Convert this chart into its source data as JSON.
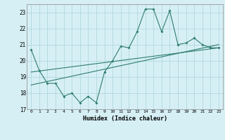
{
  "x_values": [
    0,
    1,
    2,
    3,
    4,
    5,
    6,
    7,
    8,
    9,
    10,
    11,
    12,
    13,
    14,
    15,
    16,
    17,
    18,
    19,
    20,
    21,
    22,
    23
  ],
  "y_main": [
    20.7,
    19.4,
    18.6,
    18.6,
    17.8,
    18.0,
    17.4,
    17.8,
    17.4,
    19.3,
    20.0,
    20.9,
    20.8,
    21.8,
    23.2,
    23.2,
    21.8,
    23.1,
    21.0,
    21.1,
    21.4,
    21.0,
    20.8,
    20.8
  ],
  "trend1_x": [
    0,
    23
  ],
  "trend1_y": [
    19.3,
    20.8
  ],
  "trend2_x": [
    0,
    23
  ],
  "trend2_y": [
    18.5,
    21.0
  ],
  "line_color": "#2e7d6e",
  "bg_color": "#d6eff5",
  "grid_color": "#b0d8e0",
  "xlabel": "Humidex (Indice chaleur)",
  "ylim": [
    17,
    23.5
  ],
  "xlim": [
    -0.5,
    23.5
  ],
  "yticks": [
    17,
    18,
    19,
    20,
    21,
    22,
    23
  ],
  "xticks": [
    0,
    1,
    2,
    3,
    4,
    5,
    6,
    7,
    8,
    9,
    10,
    11,
    12,
    13,
    14,
    15,
    16,
    17,
    18,
    19,
    20,
    21,
    22,
    23
  ]
}
